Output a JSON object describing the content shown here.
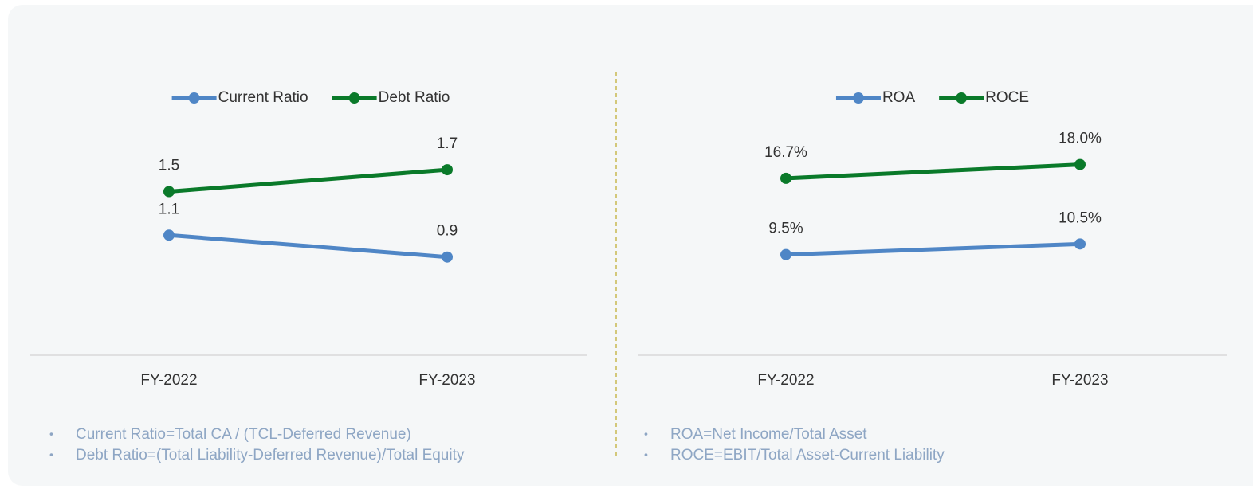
{
  "chart_data": [
    {
      "type": "line",
      "categories": [
        "FY-2022",
        "FY-2023"
      ],
      "series": [
        {
          "name": "Current Ratio",
          "color": "#4f86c6",
          "values": [
            1.1,
            0.9
          ]
        },
        {
          "name": "Debt Ratio",
          "color": "#0a7a2a",
          "values": [
            1.5,
            1.7
          ]
        }
      ],
      "ylim": [
        0,
        2
      ],
      "legend": "top",
      "notes": [
        "Current Ratio=Total CA / (TCL-Deferred Revenue)",
        "Debt Ratio=(Total Liability-Deferred Revenue)/Total Equity"
      ]
    },
    {
      "type": "line",
      "categories": [
        "FY-2022",
        "FY-2023"
      ],
      "series": [
        {
          "name": "ROA",
          "color": "#4f86c6",
          "values": [
            9.5,
            10.5
          ],
          "value_labels": [
            "9.5%",
            "10.5%"
          ]
        },
        {
          "name": "ROCE",
          "color": "#0a7a2a",
          "values": [
            16.7,
            18.0
          ],
          "value_labels": [
            "16.7%",
            "18.0%"
          ]
        }
      ],
      "ylim": [
        0,
        20
      ],
      "legend": "top",
      "notes": [
        "ROA=Net Income/Total Asset",
        "ROCE=EBIT/Total Asset-Current Liability"
      ]
    }
  ]
}
